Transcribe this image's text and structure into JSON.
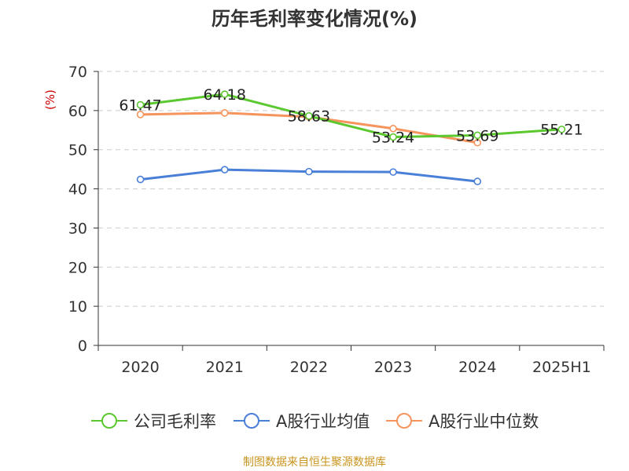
{
  "title": "历年毛利率变化情况(%)",
  "source": "制图数据来自恒生聚源数据库",
  "chart_data": {
    "type": "line",
    "title": "历年毛利率变化情况(%)",
    "ylabel": "(%)",
    "xlabel": "",
    "categories": [
      "2020",
      "2021",
      "2022",
      "2023",
      "2024",
      "2025H1"
    ],
    "ylim": [
      0,
      70
    ],
    "yticks": [
      0,
      10,
      20,
      30,
      40,
      50,
      60,
      70
    ],
    "grid": true,
    "legend_position": "bottom",
    "series": [
      {
        "name": "公司毛利率",
        "color": "#5cc830",
        "values": [
          61.47,
          64.18,
          58.63,
          53.24,
          53.69,
          55.21
        ],
        "labels": [
          "61.47",
          "64.18",
          "58.63",
          "53.24",
          "53.69",
          "55.21"
        ]
      },
      {
        "name": "A股行业均值",
        "color": "#4a7fd8",
        "values": [
          42.4,
          44.9,
          44.4,
          44.3,
          41.9,
          null
        ],
        "labels": []
      },
      {
        "name": "A股行业中位数",
        "color": "#f5945c",
        "values": [
          59.0,
          59.4,
          58.4,
          55.4,
          51.8,
          null
        ],
        "labels": []
      }
    ]
  }
}
